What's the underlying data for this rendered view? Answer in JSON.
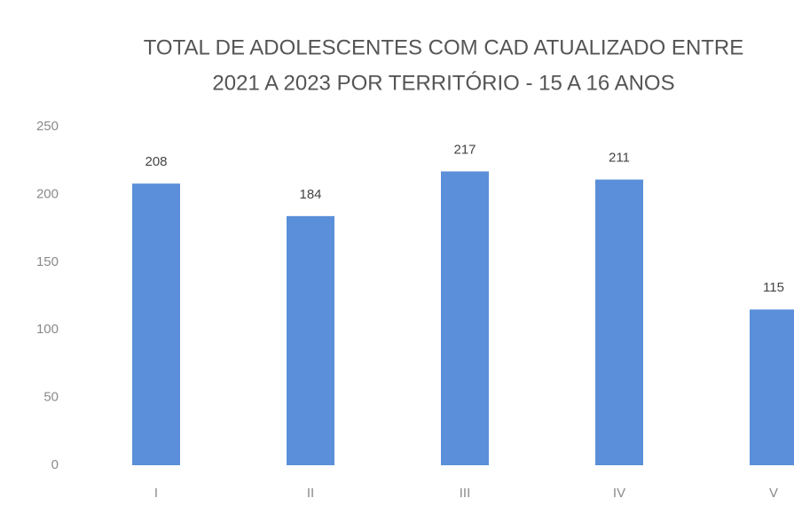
{
  "chart_data": {
    "type": "bar",
    "title": [
      "TOTAL DE ADOLESCENTES COM CAD ATUALIZADO ENTRE",
      "2021 A 2023 POR TERRITÓRIO - 15 A 16 ANOS"
    ],
    "categories": [
      "I",
      "II",
      "III",
      "IV",
      "V"
    ],
    "values": [
      208,
      184,
      217,
      211,
      115
    ],
    "color": "#5b8fd9",
    "ylim": [
      0,
      250
    ],
    "yticks": [
      0,
      50,
      100,
      150,
      200,
      250
    ],
    "grid": false
  }
}
